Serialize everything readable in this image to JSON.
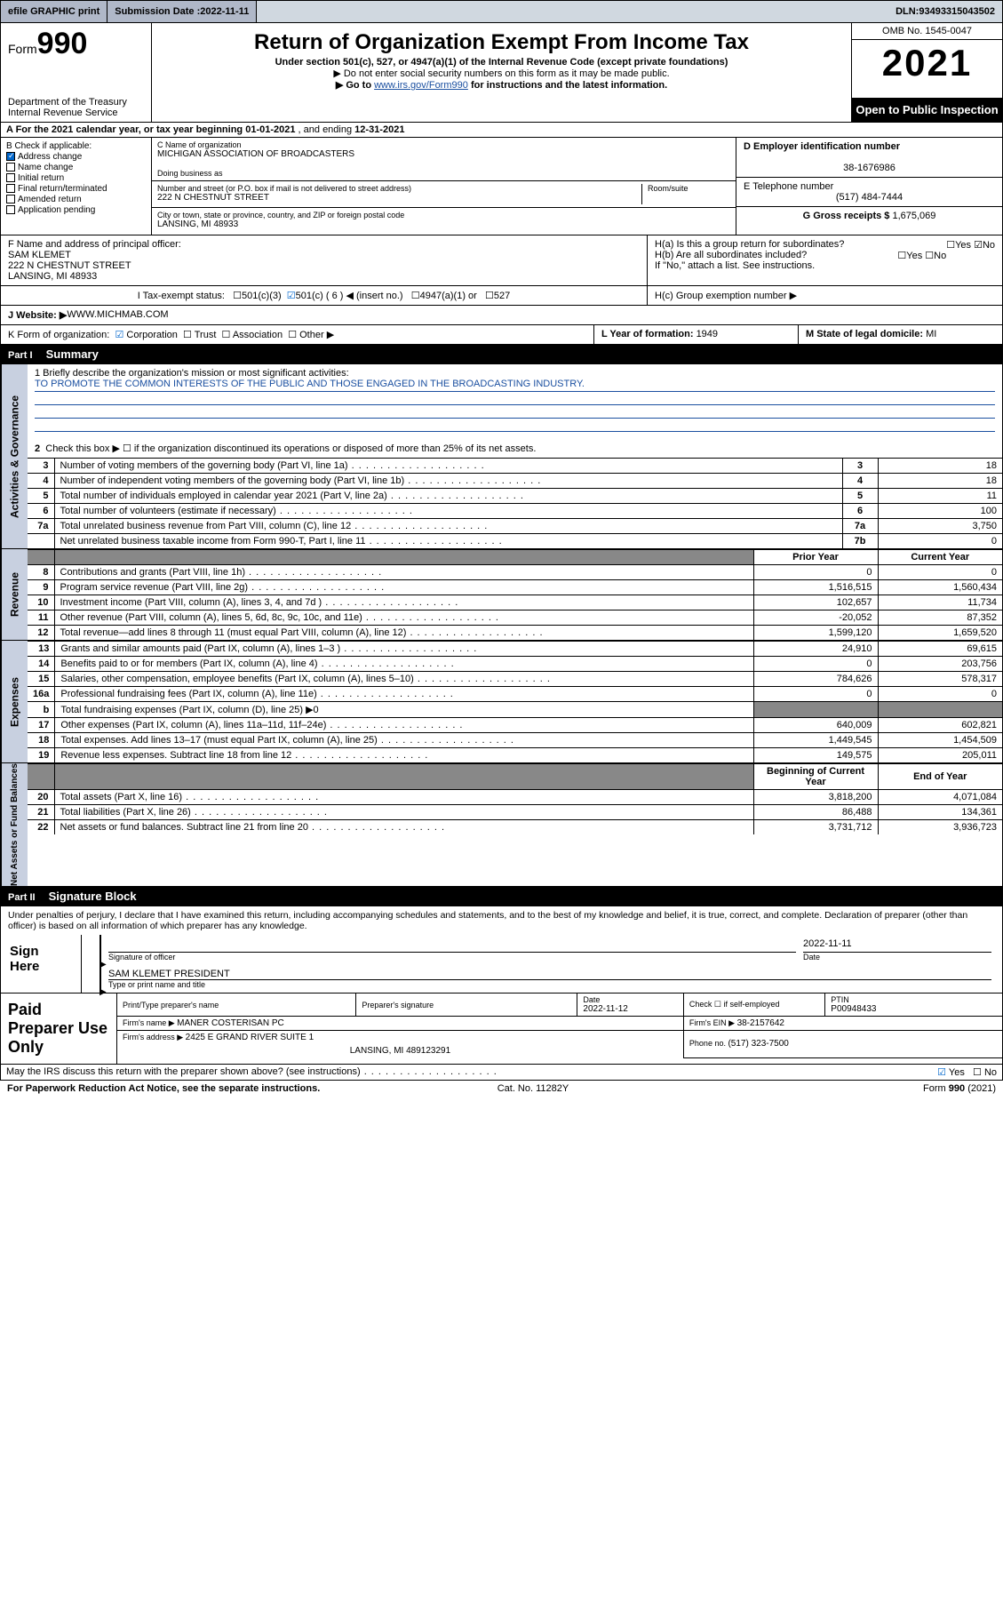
{
  "topbar": {
    "efile": "efile GRAPHIC print",
    "sub_label": "Submission Date : ",
    "sub_date": "2022-11-11",
    "dln_label": "DLN: ",
    "dln": "93493315043502"
  },
  "header": {
    "form_pre": "Form",
    "form_num": "990",
    "dept": "Department of the Treasury",
    "irs": "Internal Revenue Service",
    "title": "Return of Organization Exempt From Income Tax",
    "sub1": "Under section 501(c), 527, or 4947(a)(1) of the Internal Revenue Code (except private foundations)",
    "sub2": "▶ Do not enter social security numbers on this form as it may be made public.",
    "sub3_pre": "▶ Go to ",
    "sub3_link": "www.irs.gov/Form990",
    "sub3_post": " for instructions and the latest information.",
    "omb": "OMB No. 1545-0047",
    "year": "2021",
    "open": "Open to Public Inspection"
  },
  "row_a": {
    "label": "A  For the 2021 calendar year, or tax year beginning ",
    "begin": "01-01-2021",
    "mid": "  , and ending ",
    "end": "12-31-2021"
  },
  "colB": {
    "title": "B Check if applicable:",
    "items": [
      {
        "label": "Address change",
        "checked": true
      },
      {
        "label": "Name change",
        "checked": false
      },
      {
        "label": "Initial return",
        "checked": false
      },
      {
        "label": "Final return/terminated",
        "checked": false
      },
      {
        "label": "Amended return",
        "checked": false
      },
      {
        "label": "Application pending",
        "checked": false
      }
    ]
  },
  "colC": {
    "c_label": "C Name of organization",
    "c_val": "MICHIGAN ASSOCIATION OF BROADCASTERS",
    "dba_label": "Doing business as",
    "addr_label": "Number and street (or P.O. box if mail is not delivered to street address)",
    "room_label": "Room/suite",
    "addr_val": "222 N CHESTNUT STREET",
    "city_label": "City or town, state or province, country, and ZIP or foreign postal code",
    "city_val": "LANSING, MI  48933"
  },
  "colD": {
    "d_label": "D Employer identification number",
    "d_val": "38-1676986",
    "e_label": "E Telephone number",
    "e_val": "(517) 484-7444",
    "g_label": "G Gross receipts $ ",
    "g_val": "1,675,069"
  },
  "rowF": {
    "f_label": "F  Name and address of principal officer:",
    "name": "SAM KLEMET",
    "addr": "222 N CHESTNUT STREET",
    "city": "LANSING, MI  48933",
    "ha": "H(a)  Is this a group return for subordinates?",
    "hb": "H(b)  Are all subordinates included?",
    "hb_note": "If \"No,\" attach a list. See instructions.",
    "yes": "Yes",
    "no": "No"
  },
  "rowI": {
    "label": "I   Tax-exempt status:",
    "o1": "501(c)(3)",
    "o2": "501(c) ( 6 ) ◀ (insert no.)",
    "o3": "4947(a)(1) or",
    "o4": "527",
    "hc": "H(c)  Group exemption number ▶"
  },
  "rowJ": {
    "label": "J   Website: ▶ ",
    "val": "WWW.MICHMAB.COM"
  },
  "rowK": {
    "label": "K Form of organization:",
    "o1": "Corporation",
    "o2": "Trust",
    "o3": "Association",
    "o4": "Other ▶",
    "l_label": "L Year of formation: ",
    "l_val": "1949",
    "m_label": "M State of legal domicile: ",
    "m_val": "MI"
  },
  "partI": {
    "part": "Part I",
    "title": "Summary"
  },
  "mission": {
    "q1": "1   Briefly describe the organization's mission or most significant activities:",
    "line": "TO PROMOTE THE COMMON INTERESTS OF THE PUBLIC AND THOSE ENGAGED IN THE BROADCASTING INDUSTRY."
  },
  "gov": {
    "tab": "Activities & Governance",
    "q2": "Check this box ▶ ☐  if the organization discontinued its operations or disposed of more than 25% of its net assets.",
    "rows": [
      {
        "n": "3",
        "d": "Number of voting members of the governing body (Part VI, line 1a)",
        "c": "3",
        "v": "18"
      },
      {
        "n": "4",
        "d": "Number of independent voting members of the governing body (Part VI, line 1b)",
        "c": "4",
        "v": "18"
      },
      {
        "n": "5",
        "d": "Total number of individuals employed in calendar year 2021 (Part V, line 2a)",
        "c": "5",
        "v": "11"
      },
      {
        "n": "6",
        "d": "Total number of volunteers (estimate if necessary)",
        "c": "6",
        "v": "100"
      },
      {
        "n": "7a",
        "d": "Total unrelated business revenue from Part VIII, column (C), line 12",
        "c": "7a",
        "v": "3,750"
      },
      {
        "n": "",
        "d": "Net unrelated business taxable income from Form 990-T, Part I, line 11",
        "c": "7b",
        "v": "0"
      }
    ]
  },
  "rev": {
    "tab": "Revenue",
    "h_prior": "Prior Year",
    "h_curr": "Current Year",
    "rows": [
      {
        "n": "8",
        "d": "Contributions and grants (Part VIII, line 1h)",
        "p": "0",
        "c": "0"
      },
      {
        "n": "9",
        "d": "Program service revenue (Part VIII, line 2g)",
        "p": "1,516,515",
        "c": "1,560,434"
      },
      {
        "n": "10",
        "d": "Investment income (Part VIII, column (A), lines 3, 4, and 7d )",
        "p": "102,657",
        "c": "11,734"
      },
      {
        "n": "11",
        "d": "Other revenue (Part VIII, column (A), lines 5, 6d, 8c, 9c, 10c, and 11e)",
        "p": "-20,052",
        "c": "87,352"
      },
      {
        "n": "12",
        "d": "Total revenue—add lines 8 through 11 (must equal Part VIII, column (A), line 12)",
        "p": "1,599,120",
        "c": "1,659,520"
      }
    ]
  },
  "exp": {
    "tab": "Expenses",
    "rows": [
      {
        "n": "13",
        "d": "Grants and similar amounts paid (Part IX, column (A), lines 1–3 )",
        "p": "24,910",
        "c": "69,615"
      },
      {
        "n": "14",
        "d": "Benefits paid to or for members (Part IX, column (A), line 4)",
        "p": "0",
        "c": "203,756"
      },
      {
        "n": "15",
        "d": "Salaries, other compensation, employee benefits (Part IX, column (A), lines 5–10)",
        "p": "784,626",
        "c": "578,317"
      },
      {
        "n": "16a",
        "d": "Professional fundraising fees (Part IX, column (A), line 11e)",
        "p": "0",
        "c": "0"
      },
      {
        "n": "b",
        "d": "Total fundraising expenses (Part IX, column (D), line 25) ▶0",
        "p": "",
        "c": "",
        "gray": true
      },
      {
        "n": "17",
        "d": "Other expenses (Part IX, column (A), lines 11a–11d, 11f–24e)",
        "p": "640,009",
        "c": "602,821"
      },
      {
        "n": "18",
        "d": "Total expenses. Add lines 13–17 (must equal Part IX, column (A), line 25)",
        "p": "1,449,545",
        "c": "1,454,509"
      },
      {
        "n": "19",
        "d": "Revenue less expenses. Subtract line 18 from line 12",
        "p": "149,575",
        "c": "205,011"
      }
    ]
  },
  "net": {
    "tab": "Net Assets or Fund Balances",
    "h_beg": "Beginning of Current Year",
    "h_end": "End of Year",
    "rows": [
      {
        "n": "20",
        "d": "Total assets (Part X, line 16)",
        "p": "3,818,200",
        "c": "4,071,084"
      },
      {
        "n": "21",
        "d": "Total liabilities (Part X, line 26)",
        "p": "86,488",
        "c": "134,361"
      },
      {
        "n": "22",
        "d": "Net assets or fund balances. Subtract line 21 from line 20",
        "p": "3,731,712",
        "c": "3,936,723"
      }
    ]
  },
  "partII": {
    "part": "Part II",
    "title": "Signature Block"
  },
  "sig": {
    "decl": "Under penalties of perjury, I declare that I have examined this return, including accompanying schedules and statements, and to the best of my knowledge and belief, it is true, correct, and complete. Declaration of preparer (other than officer) is based on all information of which preparer has any knowledge.",
    "sign_here": "Sign Here",
    "l1": "Signature of officer",
    "l1_date_label": "Date",
    "l1_date": "2022-11-11",
    "l2_name": "SAM KLEMET PRESIDENT",
    "l2_label": "Type or print name and title"
  },
  "prep": {
    "title": "Paid Preparer Use Only",
    "h1": "Print/Type preparer's name",
    "h2": "Preparer's signature",
    "h3_label": "Date",
    "h3_val": "2022-11-12",
    "h4_label": "Check ☐ if self-employed",
    "h5_label": "PTIN",
    "h5_val": "P00948433",
    "firm_label": "Firm's name     ▶ ",
    "firm_val": "MANER COSTERISAN PC",
    "ein_label": "Firm's EIN ▶ ",
    "ein_val": "38-2157642",
    "addr_label": "Firm's address ▶ ",
    "addr_val": "2425 E GRAND RIVER SUITE 1",
    "addr_city": "LANSING, MI  489123291",
    "phone_label": "Phone no. ",
    "phone_val": "(517) 323-7500"
  },
  "discuss": {
    "q": "May the IRS discuss this return with the preparer shown above? (see instructions)",
    "yes": "Yes",
    "no": "No"
  },
  "footer": {
    "left": "For Paperwork Reduction Act Notice, see the separate instructions.",
    "mid": "Cat. No. 11282Y",
    "right_pre": "Form ",
    "right_b": "990",
    "right_post": " (2021)"
  },
  "colors": {
    "link": "#1a4fa0",
    "topbar_bg": "#d0d8e0",
    "btn_bg": "#b0b8c8",
    "vtab_bg": "#c8d0e0",
    "gray_cell": "#888888"
  }
}
